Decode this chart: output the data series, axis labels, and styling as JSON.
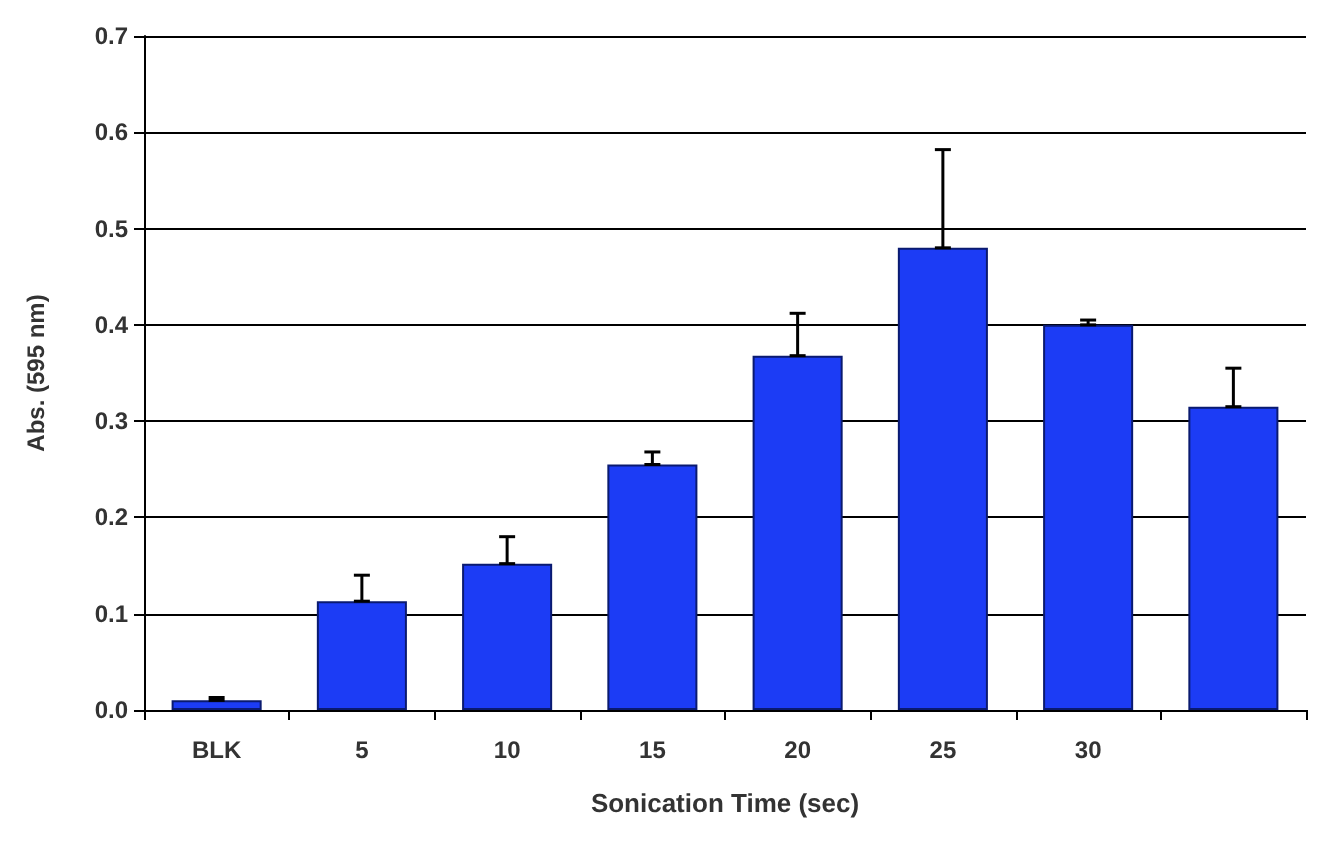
{
  "chart_data": {
    "type": "bar",
    "xlabel": "Sonication Time (sec)",
    "ylabel": "Abs. (595 nm)",
    "categories": [
      "BLK",
      "5",
      "10",
      "15",
      "20",
      "25",
      "30",
      null
    ],
    "values": [
      0.01,
      0.113,
      0.152,
      0.255,
      0.368,
      0.48,
      0.4,
      0.315
    ],
    "errors": [
      [
        0.01,
        0.013
      ],
      [
        0.113,
        0.14
      ],
      [
        0.152,
        0.18
      ],
      [
        0.255,
        0.268
      ],
      [
        0.368,
        0.412
      ],
      [
        0.48,
        0.582
      ],
      [
        0.4,
        0.405
      ],
      [
        0.315,
        0.355
      ]
    ],
    "color": "#1c3cf5",
    "ylim": [
      0,
      0.7
    ],
    "yticks": [
      {
        "value": 0,
        "label": "0.0"
      },
      0.1,
      0.2,
      0.3,
      0.4,
      0.5,
      0.6,
      0.7
    ],
    "grid": "y"
  }
}
